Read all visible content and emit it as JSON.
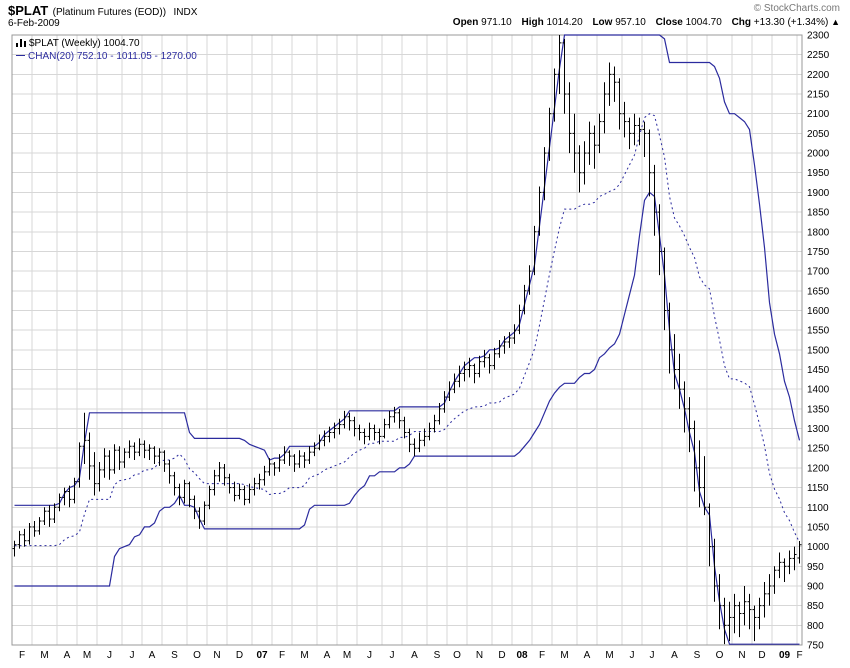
{
  "header": {
    "symbol": "$PLAT",
    "description": "(Platinum Futures (EOD))",
    "exchange": "INDX",
    "date": "6-Feb-2009",
    "copyright": "© StockCharts.com",
    "quote": {
      "open_label": "Open",
      "open": "971.10",
      "high_label": "High",
      "high": "1014.20",
      "low_label": "Low",
      "low": "957.10",
      "close_label": "Close",
      "close": "1004.70",
      "chg_label": "Chg",
      "chg": "+13.30 (+1.34%)",
      "chg_direction": "▲"
    }
  },
  "legend": {
    "line1": "$PLAT (Weekly) 1004.70",
    "line2": "CHAN(20) 752.10 - 1011.05 - 1270.00"
  },
  "chart_data": {
    "type": "bar",
    "subtype": "weekly-ohlc-with-price-channel",
    "title": "$PLAT Platinum Futures (EOD) INDX - Weekly",
    "ylabel": "",
    "xlabel": "",
    "ylim": [
      750,
      2300
    ],
    "y_tick_step": 50,
    "grid": true,
    "x_month_labels": [
      "F",
      "M",
      "A",
      "M",
      "J",
      "J",
      "A",
      "S",
      "O",
      "N",
      "D",
      "07",
      "F",
      "M",
      "A",
      "M",
      "J",
      "J",
      "A",
      "S",
      "O",
      "N",
      "D",
      "08",
      "F",
      "M",
      "A",
      "M",
      "J",
      "J",
      "A",
      "S",
      "O",
      "N",
      "D",
      "09",
      "F"
    ],
    "weeks_per_month": [
      4,
      5,
      4,
      4,
      5,
      4,
      4,
      5,
      4,
      4,
      5,
      4,
      4,
      5,
      4,
      4,
      5,
      4,
      5,
      4,
      4,
      5,
      4,
      4,
      4,
      5,
      4,
      5,
      4,
      4,
      5,
      4,
      5,
      4,
      4,
      5,
      1
    ],
    "bars_format": [
      "open",
      "high",
      "low",
      "close"
    ],
    "bars": [
      [
        995,
        1015,
        975,
        1005
      ],
      [
        1005,
        1040,
        995,
        1030
      ],
      [
        1030,
        1045,
        1000,
        1015
      ],
      [
        1015,
        1060,
        1005,
        1050
      ],
      [
        1050,
        1065,
        1025,
        1040
      ],
      [
        1040,
        1075,
        1030,
        1065
      ],
      [
        1065,
        1100,
        1055,
        1090
      ],
      [
        1090,
        1105,
        1050,
        1070
      ],
      [
        1070,
        1110,
        1060,
        1100
      ],
      [
        1100,
        1135,
        1090,
        1125
      ],
      [
        1125,
        1150,
        1105,
        1140
      ],
      [
        1140,
        1155,
        1100,
        1120
      ],
      [
        1120,
        1175,
        1110,
        1165
      ],
      [
        1165,
        1265,
        1150,
        1255
      ],
      [
        1255,
        1340,
        1210,
        1270
      ],
      [
        1270,
        1290,
        1170,
        1205
      ],
      [
        1205,
        1240,
        1130,
        1160
      ],
      [
        1160,
        1215,
        1140,
        1195
      ],
      [
        1195,
        1250,
        1175,
        1230
      ],
      [
        1230,
        1245,
        1170,
        1195
      ],
      [
        1195,
        1260,
        1185,
        1245
      ],
      [
        1245,
        1255,
        1195,
        1215
      ],
      [
        1215,
        1250,
        1200,
        1240
      ],
      [
        1240,
        1270,
        1225,
        1255
      ],
      [
        1255,
        1265,
        1220,
        1240
      ],
      [
        1240,
        1275,
        1230,
        1260
      ],
      [
        1260,
        1270,
        1225,
        1245
      ],
      [
        1245,
        1260,
        1220,
        1250
      ],
      [
        1250,
        1255,
        1210,
        1230
      ],
      [
        1230,
        1250,
        1205,
        1240
      ],
      [
        1240,
        1245,
        1190,
        1210
      ],
      [
        1210,
        1220,
        1160,
        1180
      ],
      [
        1180,
        1190,
        1130,
        1150
      ],
      [
        1150,
        1160,
        1105,
        1125
      ],
      [
        1125,
        1170,
        1110,
        1160
      ],
      [
        1160,
        1165,
        1100,
        1120
      ],
      [
        1120,
        1130,
        1070,
        1090
      ],
      [
        1090,
        1100,
        1045,
        1065
      ],
      [
        1065,
        1115,
        1055,
        1105
      ],
      [
        1105,
        1155,
        1095,
        1145
      ],
      [
        1145,
        1195,
        1130,
        1180
      ],
      [
        1180,
        1215,
        1165,
        1200
      ],
      [
        1200,
        1210,
        1155,
        1175
      ],
      [
        1175,
        1185,
        1135,
        1150
      ],
      [
        1150,
        1165,
        1115,
        1130
      ],
      [
        1130,
        1160,
        1120,
        1145
      ],
      [
        1145,
        1155,
        1105,
        1120
      ],
      [
        1120,
        1160,
        1110,
        1145
      ],
      [
        1145,
        1175,
        1130,
        1160
      ],
      [
        1160,
        1185,
        1145,
        1170
      ],
      [
        1170,
        1205,
        1155,
        1190
      ],
      [
        1190,
        1225,
        1180,
        1210
      ],
      [
        1210,
        1215,
        1180,
        1200
      ],
      [
        1200,
        1235,
        1190,
        1220
      ],
      [
        1220,
        1255,
        1210,
        1240
      ],
      [
        1240,
        1245,
        1205,
        1230
      ],
      [
        1230,
        1235,
        1190,
        1210
      ],
      [
        1210,
        1245,
        1200,
        1230
      ],
      [
        1230,
        1240,
        1200,
        1220
      ],
      [
        1220,
        1255,
        1210,
        1240
      ],
      [
        1240,
        1265,
        1230,
        1250
      ],
      [
        1250,
        1285,
        1245,
        1270
      ],
      [
        1270,
        1295,
        1255,
        1280
      ],
      [
        1280,
        1305,
        1265,
        1290
      ],
      [
        1290,
        1315,
        1275,
        1300
      ],
      [
        1300,
        1325,
        1285,
        1310
      ],
      [
        1310,
        1345,
        1300,
        1330
      ],
      [
        1330,
        1340,
        1295,
        1320
      ],
      [
        1320,
        1330,
        1280,
        1300
      ],
      [
        1300,
        1310,
        1270,
        1290
      ],
      [
        1290,
        1300,
        1260,
        1280
      ],
      [
        1280,
        1315,
        1270,
        1300
      ],
      [
        1300,
        1310,
        1270,
        1290
      ],
      [
        1290,
        1300,
        1260,
        1280
      ],
      [
        1280,
        1325,
        1275,
        1310
      ],
      [
        1310,
        1345,
        1300,
        1330
      ],
      [
        1330,
        1355,
        1315,
        1340
      ],
      [
        1340,
        1350,
        1300,
        1320
      ],
      [
        1320,
        1330,
        1275,
        1290
      ],
      [
        1290,
        1300,
        1240,
        1260
      ],
      [
        1260,
        1275,
        1230,
        1250
      ],
      [
        1250,
        1290,
        1240,
        1270
      ],
      [
        1270,
        1300,
        1255,
        1280
      ],
      [
        1280,
        1315,
        1270,
        1300
      ],
      [
        1300,
        1335,
        1290,
        1320
      ],
      [
        1320,
        1365,
        1310,
        1350
      ],
      [
        1350,
        1395,
        1340,
        1380
      ],
      [
        1380,
        1420,
        1370,
        1400
      ],
      [
        1400,
        1440,
        1390,
        1420
      ],
      [
        1420,
        1460,
        1405,
        1440
      ],
      [
        1440,
        1470,
        1420,
        1450
      ],
      [
        1450,
        1480,
        1430,
        1460
      ],
      [
        1460,
        1465,
        1415,
        1440
      ],
      [
        1440,
        1485,
        1430,
        1470
      ],
      [
        1470,
        1500,
        1455,
        1480
      ],
      [
        1480,
        1490,
        1440,
        1460
      ],
      [
        1460,
        1505,
        1450,
        1490
      ],
      [
        1490,
        1525,
        1480,
        1510
      ],
      [
        1510,
        1535,
        1490,
        1520
      ],
      [
        1520,
        1545,
        1505,
        1530
      ],
      [
        1530,
        1565,
        1515,
        1550
      ],
      [
        1550,
        1615,
        1540,
        1600
      ],
      [
        1600,
        1665,
        1590,
        1650
      ],
      [
        1650,
        1715,
        1640,
        1700
      ],
      [
        1700,
        1815,
        1690,
        1800
      ],
      [
        1800,
        1915,
        1790,
        1900
      ],
      [
        1900,
        2015,
        1880,
        2000
      ],
      [
        2000,
        2115,
        1980,
        2100
      ],
      [
        2100,
        2215,
        2080,
        2200
      ],
      [
        2200,
        2300,
        2150,
        2280
      ],
      [
        2280,
        2290,
        2100,
        2150
      ],
      [
        2150,
        2180,
        2000,
        2050
      ],
      [
        2050,
        2100,
        1950,
        2000
      ],
      [
        2000,
        2020,
        1900,
        1950
      ],
      [
        1950,
        2030,
        1920,
        2000
      ],
      [
        2000,
        2080,
        1970,
        2050
      ],
      [
        2050,
        2070,
        1960,
        2020
      ],
      [
        2020,
        2100,
        2000,
        2080
      ],
      [
        2080,
        2180,
        2050,
        2150
      ],
      [
        2150,
        2230,
        2120,
        2200
      ],
      [
        2200,
        2220,
        2130,
        2180
      ],
      [
        2180,
        2190,
        2060,
        2100
      ],
      [
        2100,
        2130,
        2040,
        2080
      ],
      [
        2080,
        2090,
        2010,
        2050
      ],
      [
        2050,
        2100,
        2020,
        2070
      ],
      [
        2070,
        2090,
        2020,
        2060
      ],
      [
        2060,
        2080,
        1990,
        2050
      ],
      [
        2050,
        2060,
        1890,
        1950
      ],
      [
        1950,
        1970,
        1790,
        1850
      ],
      [
        1850,
        1870,
        1690,
        1750
      ],
      [
        1750,
        1760,
        1550,
        1600
      ],
      [
        1600,
        1620,
        1440,
        1500
      ],
      [
        1500,
        1540,
        1400,
        1450
      ],
      [
        1450,
        1490,
        1350,
        1400
      ],
      [
        1400,
        1420,
        1290,
        1350
      ],
      [
        1350,
        1380,
        1240,
        1300
      ],
      [
        1300,
        1320,
        1140,
        1200
      ],
      [
        1200,
        1270,
        1100,
        1150
      ],
      [
        1150,
        1230,
        1080,
        1100
      ],
      [
        1100,
        1110,
        950,
        1000
      ],
      [
        1000,
        1020,
        860,
        900
      ],
      [
        900,
        930,
        790,
        850
      ],
      [
        850,
        870,
        752.1,
        800
      ],
      [
        800,
        860,
        760,
        820
      ],
      [
        820,
        880,
        780,
        850
      ],
      [
        850,
        860,
        770,
        830
      ],
      [
        830,
        900,
        800,
        860
      ],
      [
        860,
        880,
        790,
        840
      ],
      [
        840,
        850,
        760,
        820
      ],
      [
        820,
        870,
        790,
        850
      ],
      [
        850,
        910,
        820,
        880
      ],
      [
        880,
        930,
        850,
        900
      ],
      [
        900,
        950,
        880,
        940
      ],
      [
        940,
        985,
        920,
        960
      ],
      [
        960,
        970,
        910,
        950
      ],
      [
        950,
        990,
        930,
        970
      ],
      [
        970,
        1000,
        940,
        980
      ],
      [
        971.1,
        1014.2,
        957.1,
        1004.7
      ]
    ],
    "channel": {
      "name": "CHAN",
      "period": 20,
      "seed_upper": 1105,
      "seed_lower": 900,
      "last_lower": 752.1,
      "last_middle": 1011.05,
      "last_upper": 1270.0
    },
    "colors": {
      "bars": "#000000",
      "channel": "#2b2b9e",
      "grid": "#d7d7d7",
      "axis_border": "#999999",
      "label": "#000000",
      "background": "#ffffff",
      "copyright": "#777777"
    }
  }
}
